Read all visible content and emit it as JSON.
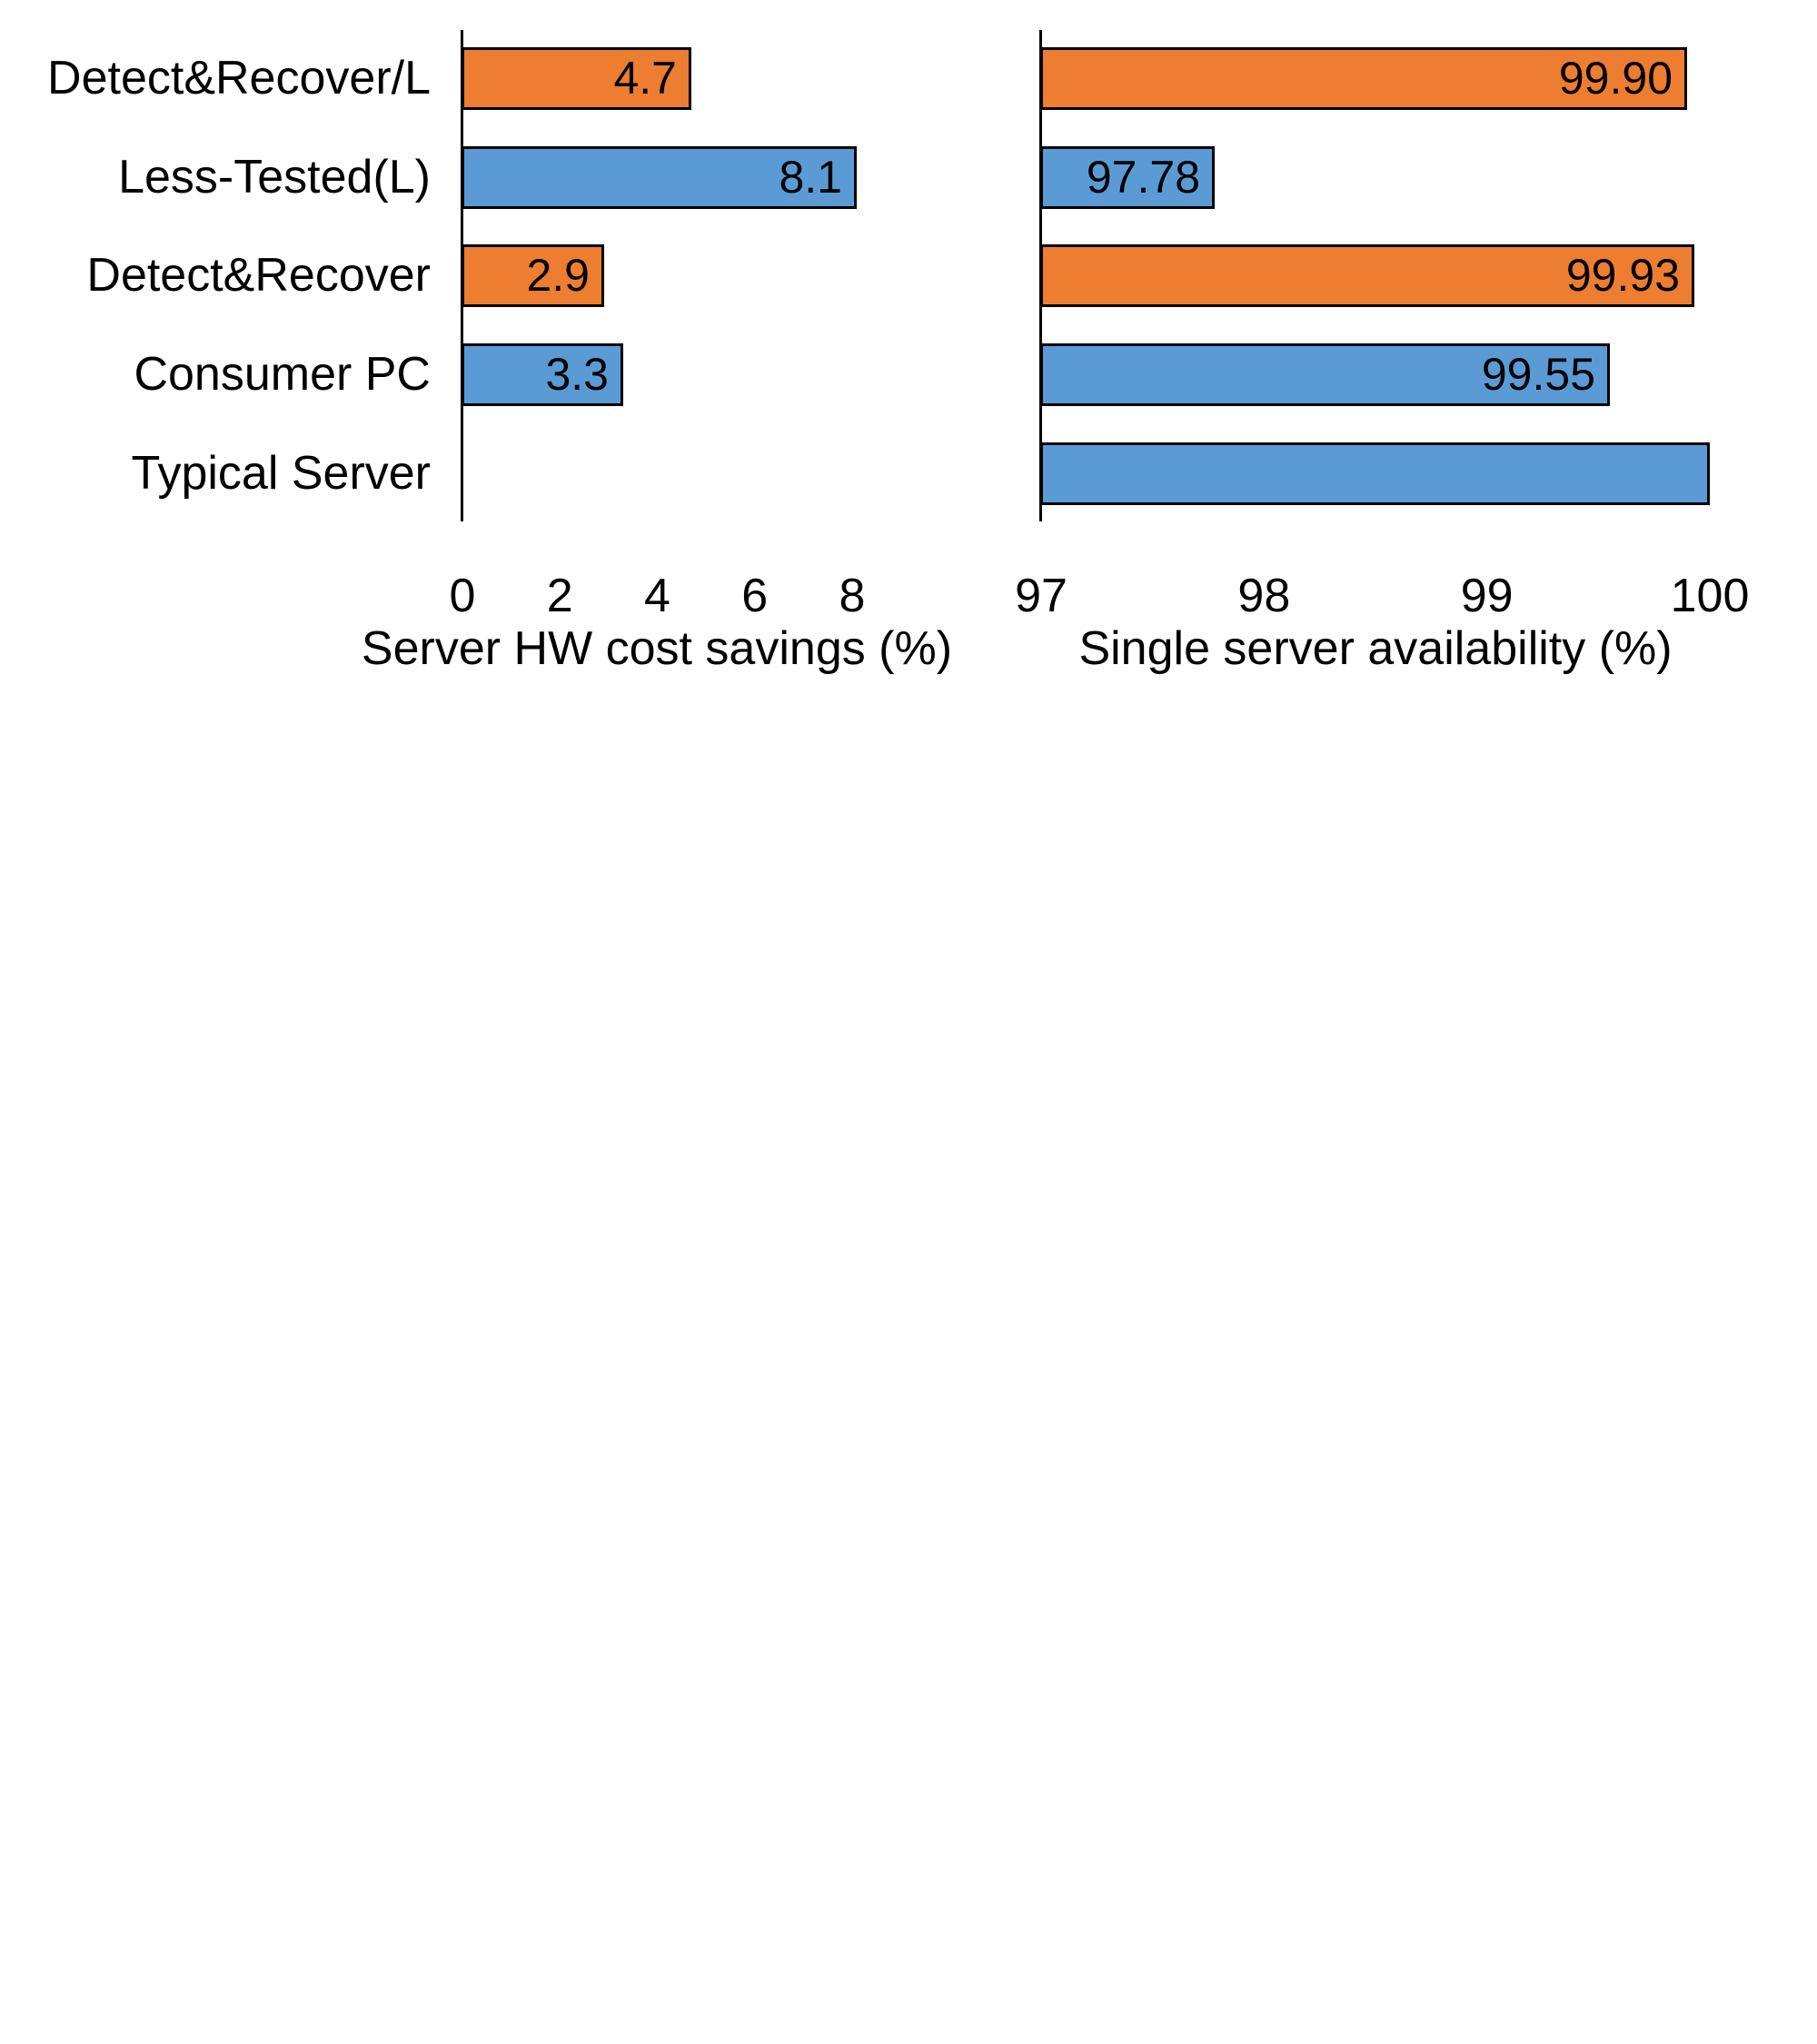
{
  "figure": {
    "background": "#ffffff",
    "note": "two horizontal bar charts sharing one category axis"
  },
  "colors": {
    "orange": "#ED7D31",
    "blue": "#5B9BD5",
    "bar_border": "#000000",
    "axis_line": "#000000",
    "text": "#000000"
  },
  "chart_data": [
    {
      "type": "bar",
      "orientation": "horizontal",
      "xlabel": "Server HW cost savings (%)",
      "categories": [
        "Detect&Recover/L",
        "Less-Tested(L)",
        "Detect&Recover",
        "Consumer PC",
        "Typical Server"
      ],
      "values": [
        4.7,
        8.1,
        2.9,
        3.3,
        0
      ],
      "bar_labels": [
        "4.7",
        "8.1",
        "2.9",
        "3.3",
        null
      ],
      "bar_colors": [
        "orange",
        "blue",
        "orange",
        "blue",
        "blue"
      ],
      "xlim": [
        0,
        8
      ],
      "xticks": [
        "0",
        "2",
        "4",
        "6",
        "8"
      ],
      "xtick_values": [
        0,
        2,
        4,
        6,
        8
      ],
      "grid": false,
      "legend": null
    },
    {
      "type": "bar",
      "orientation": "horizontal",
      "xlabel": "Single server availability (%)",
      "categories": [
        "Detect&Recover/L",
        "Less-Tested(L)",
        "Detect&Recover",
        "Consumer PC",
        "Typical Server"
      ],
      "values": [
        99.9,
        97.78,
        99.93,
        99.55,
        100
      ],
      "bar_labels": [
        "99.90",
        "97.78",
        "99.93",
        "99.55",
        null
      ],
      "bar_colors": [
        "orange",
        "blue",
        "orange",
        "blue",
        "blue"
      ],
      "xlim": [
        97,
        100
      ],
      "xticks": [
        "97",
        "98",
        "99",
        "100"
      ],
      "xtick_values": [
        97,
        98,
        99,
        100
      ],
      "grid": false,
      "legend": null
    }
  ]
}
